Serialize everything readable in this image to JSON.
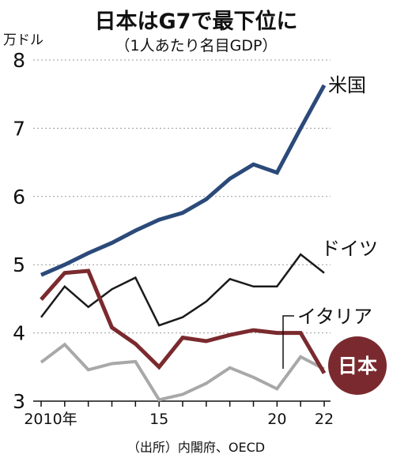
{
  "chart_data": {
    "type": "line",
    "title": "日本はG7で最下位に",
    "subtitle": "（1人あたり名目GDP）",
    "ylabel": "万ドル",
    "source": "（出所）内閣府、OECD",
    "ylim": [
      3,
      8
    ],
    "y_ticks": [
      3,
      4,
      5,
      6,
      7,
      8
    ],
    "xlim": [
      2010,
      2022
    ],
    "x_ticks": [
      {
        "value": 2010,
        "label": "2010年"
      },
      {
        "value": 2015,
        "label": "15"
      },
      {
        "value": 2020,
        "label": "20"
      },
      {
        "value": 2022,
        "label": "22"
      }
    ],
    "grid": true,
    "x": [
      2010,
      2011,
      2012,
      2013,
      2014,
      2015,
      2016,
      2017,
      2018,
      2019,
      2020,
      2021,
      2022
    ],
    "series": [
      {
        "name": "米国",
        "color": "#2b4a7a",
        "values": [
          4.85,
          5.0,
          5.17,
          5.32,
          5.5,
          5.66,
          5.76,
          5.96,
          6.26,
          6.47,
          6.35,
          7.0,
          7.63
        ]
      },
      {
        "name": "ドイツ",
        "color": "#1a1a1a",
        "values": [
          4.23,
          4.68,
          4.38,
          4.64,
          4.81,
          4.11,
          4.23,
          4.46,
          4.79,
          4.68,
          4.68,
          5.15,
          4.88
        ]
      },
      {
        "name": "日本",
        "color": "#7a2a2e",
        "values": [
          4.49,
          4.88,
          4.91,
          4.08,
          3.84,
          3.5,
          3.93,
          3.88,
          3.97,
          4.04,
          4.0,
          4.0,
          3.41
        ]
      },
      {
        "name": "イタリア",
        "color": "#a8a8a8",
        "values": [
          3.57,
          3.83,
          3.46,
          3.55,
          3.58,
          3.02,
          3.1,
          3.26,
          3.49,
          3.35,
          3.18,
          3.65,
          3.47
        ]
      }
    ]
  }
}
